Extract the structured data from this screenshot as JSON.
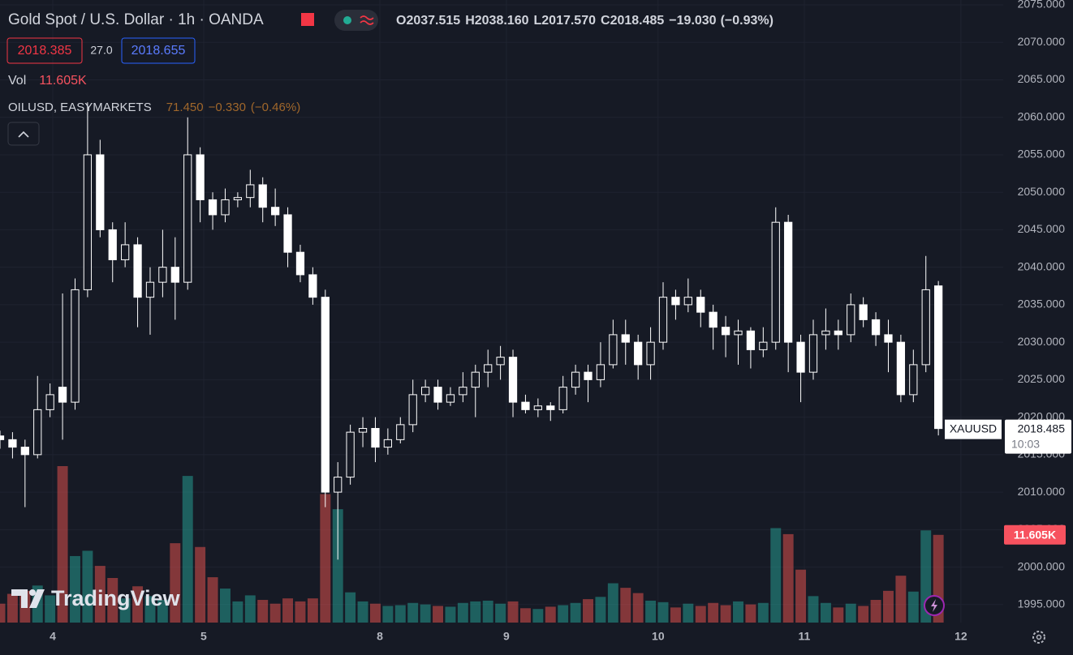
{
  "header": {
    "symbol": "Gold Spot / U.S. Dollar · 1h · OANDA",
    "ohlc_letters": [
      "O",
      "H",
      "L",
      "C"
    ],
    "open": 2037.515,
    "high": {
      "value": 2038.16,
      "label": "2038.160"
    },
    "low": {
      "value": 2017.57,
      "label": "2017.570"
    },
    "close": 2018.485,
    "change": {
      "value": -19.03,
      "label": "−19.030"
    },
    "change_percent": {
      "value": -0.93,
      "label": "(−0.93%)"
    },
    "bid": 2018.385,
    "spread": {
      "value": 27,
      "label": "27.0"
    },
    "ask": 2018.655
  },
  "volume_legend": {
    "title": "Vol",
    "value": {
      "value": 11605,
      "label": "11.605K"
    }
  },
  "overlay": {
    "name": "OILUSD, EASYMARKETS",
    "value": {
      "value": 71.45,
      "label": "71.450"
    },
    "change": {
      "value": -0.33,
      "label": "−0.330"
    },
    "change_percent": {
      "value": -0.46,
      "label": "(−0.46%)"
    }
  },
  "last_price_tag": {
    "symbol": "XAUUSD",
    "price": 2018.485,
    "time": "10:03"
  },
  "volume_tag": {
    "value": 11605,
    "label": "11.605K"
  },
  "watermark": "TradingView",
  "chart_data": {
    "type": "candlestick",
    "x": [
      0,
      2,
      4,
      6,
      8,
      10,
      12,
      14,
      16,
      18,
      20,
      22,
      24,
      26,
      28,
      30,
      32,
      34,
      36,
      38,
      40,
      42,
      44,
      46,
      48,
      50,
      52,
      54,
      56,
      58,
      60,
      62,
      64,
      66,
      68,
      70,
      72,
      74,
      76,
      78,
      80,
      82,
      84,
      86,
      88,
      90,
      92,
      94,
      96,
      98,
      100,
      102,
      104,
      106,
      108,
      110,
      112,
      114,
      116,
      118,
      120,
      122,
      124,
      126,
      128,
      130,
      132,
      134,
      136,
      138,
      140,
      142,
      144,
      146,
      148,
      150
    ],
    "open": [
      2017.5,
      2017,
      2016,
      2015,
      2021,
      2024,
      2022,
      2037,
      2055,
      2045,
      2041,
      2043,
      2036,
      2038,
      2040,
      2038,
      2055,
      2049,
      2047,
      2049,
      2049.3,
      2051,
      2048,
      2047,
      2042,
      2039,
      2036,
      2010,
      2012,
      2018,
      2018.5,
      2016,
      2017,
      2019,
      2023,
      2024,
      2022,
      2023,
      2024,
      2026,
      2027,
      2028,
      2022,
      2021,
      2021.5,
      2021,
      2024,
      2026,
      2025,
      2027,
      2031,
      2030,
      2027,
      2030,
      2036,
      2035,
      2036,
      2034,
      2032,
      2031,
      2031.5,
      2029,
      2030,
      2046,
      2030,
      2026,
      2031,
      2031.5,
      2031,
      2035,
      2033,
      2031,
      2030,
      2023,
      2027,
      2037.515
    ],
    "high": [
      2018.2,
      2018,
      2017,
      2025.5,
      2024.5,
      2036.5,
      2038.5,
      2062,
      2057,
      2046,
      2046,
      2044,
      2040,
      2045,
      2044,
      2060,
      2056,
      2050,
      2050.5,
      2050,
      2053,
      2052,
      2050.5,
      2048,
      2043,
      2040,
      2037,
      2014,
      2019,
      2020,
      2020,
      2018.5,
      2020,
      2025,
      2025,
      2025,
      2024,
      2026,
      2027,
      2029,
      2029.5,
      2029,
      2023,
      2022.5,
      2022,
      2025.5,
      2027,
      2027,
      2030,
      2033,
      2033,
      2031,
      2032,
      2038,
      2037,
      2038.5,
      2037,
      2035,
      2033.5,
      2033,
      2032,
      2032,
      2048,
      2047,
      2031,
      2033,
      2034.5,
      2033,
      2036.5,
      2036,
      2034,
      2033,
      2031,
      2029,
      2041.5,
      2038.16
    ],
    "low": [
      2015.8,
      2014.5,
      2008,
      2014.5,
      2020,
      2017,
      2021,
      2036,
      2044,
      2038,
      2040,
      2032,
      2031,
      2036,
      2033,
      2037,
      2046,
      2045,
      2046,
      2048,
      2048,
      2046,
      2045.5,
      2040,
      2038,
      2035,
      2008,
      2001,
      2011,
      2016,
      2014,
      2015,
      2016.5,
      2018,
      2022,
      2021,
      2021.5,
      2022,
      2020,
      2024,
      2025,
      2020,
      2020.5,
      2020,
      2019.5,
      2020.5,
      2023,
      2022,
      2024,
      2026.5,
      2027,
      2025,
      2025,
      2029,
      2033,
      2034,
      2032,
      2029,
      2028,
      2027,
      2026.5,
      2028,
      2029,
      2026,
      2022,
      2025,
      2029,
      2029,
      2030,
      2032,
      2029.5,
      2026,
      2022,
      2022,
      2026,
      2017.57
    ],
    "close": [
      2017,
      2016,
      2015,
      2021,
      2023,
      2022,
      2037,
      2055,
      2045,
      2041,
      2043,
      2036,
      2038,
      2040,
      2038,
      2055,
      2049,
      2047,
      2049,
      2049.3,
      2051,
      2048,
      2047,
      2042,
      2039,
      2036,
      2010,
      2012,
      2018,
      2018.5,
      2016,
      2017,
      2019,
      2023,
      2024,
      2022,
      2023,
      2024,
      2026,
      2027,
      2028,
      2022,
      2021,
      2021.5,
      2021,
      2024,
      2026,
      2025,
      2027,
      2031,
      2030,
      2027,
      2030,
      2036,
      2035,
      2036,
      2034,
      2032,
      2031,
      2031.5,
      2029,
      2030,
      2046,
      2030,
      2026,
      2031,
      2031.5,
      2031,
      2035,
      2033,
      2031,
      2030,
      2023,
      2027,
      2037,
      2018.485
    ],
    "volume": [
      2500,
      3800,
      4200,
      4900,
      3600,
      20700,
      8800,
      9500,
      7500,
      5900,
      3200,
      4800,
      3500,
      3000,
      10500,
      19400,
      10000,
      6000,
      4500,
      2800,
      3600,
      3000,
      2500,
      3200,
      2800,
      3200,
      17000,
      15000,
      4000,
      2800,
      2500,
      2200,
      2300,
      2600,
      2400,
      2200,
      2100,
      2600,
      2800,
      2900,
      2500,
      2800,
      1900,
      1800,
      2100,
      2300,
      2600,
      3100,
      3400,
      5200,
      4600,
      3900,
      2900,
      2700,
      2000,
      2500,
      2200,
      2600,
      2300,
      2800,
      2400,
      2600,
      12500,
      11700,
      7000,
      3500,
      2600,
      2000,
      2500,
      2200,
      3000,
      4200,
      6200,
      4100,
      12200,
      11605
    ],
    "xlim": [
      0,
      171
    ],
    "ylim": [
      1992.6,
      2075.65
    ],
    "xticks": [
      {
        "value": 8.43,
        "label": "4"
      },
      {
        "value": 32.56,
        "label": "5"
      },
      {
        "value": 60.72,
        "label": "8"
      },
      {
        "value": 80.95,
        "label": "9"
      },
      {
        "value": 105.2,
        "label": "10"
      },
      {
        "value": 128.57,
        "label": "11"
      },
      {
        "value": 153.6,
        "label": "12"
      }
    ],
    "yticks": [
      {
        "value": 1995,
        "label": "1995.000"
      },
      {
        "value": 2000,
        "label": "2000.000"
      },
      {
        "value": 2005,
        "label": "2005.000"
      },
      {
        "value": 2010,
        "label": "2010.000"
      },
      {
        "value": 2015,
        "label": "2015.000"
      },
      {
        "value": 2020,
        "label": "2020.000"
      },
      {
        "value": 2025,
        "label": "2025.000"
      },
      {
        "value": 2030,
        "label": "2030.000"
      },
      {
        "value": 2035,
        "label": "2035.000"
      },
      {
        "value": 2040,
        "label": "2040.000"
      },
      {
        "value": 2045,
        "label": "2045.000"
      },
      {
        "value": 2050,
        "label": "2050.000"
      },
      {
        "value": 2055,
        "label": "2055.000"
      },
      {
        "value": 2060,
        "label": "2060.000"
      },
      {
        "value": 2065,
        "label": "2065.000"
      },
      {
        "value": 2070,
        "label": "2070.000"
      },
      {
        "value": 2075,
        "label": "2075.000"
      }
    ],
    "grid": true,
    "candle_color": "#ffffff",
    "up_volume_color": "#26a69a",
    "down_volume_color": "#ef5350"
  }
}
